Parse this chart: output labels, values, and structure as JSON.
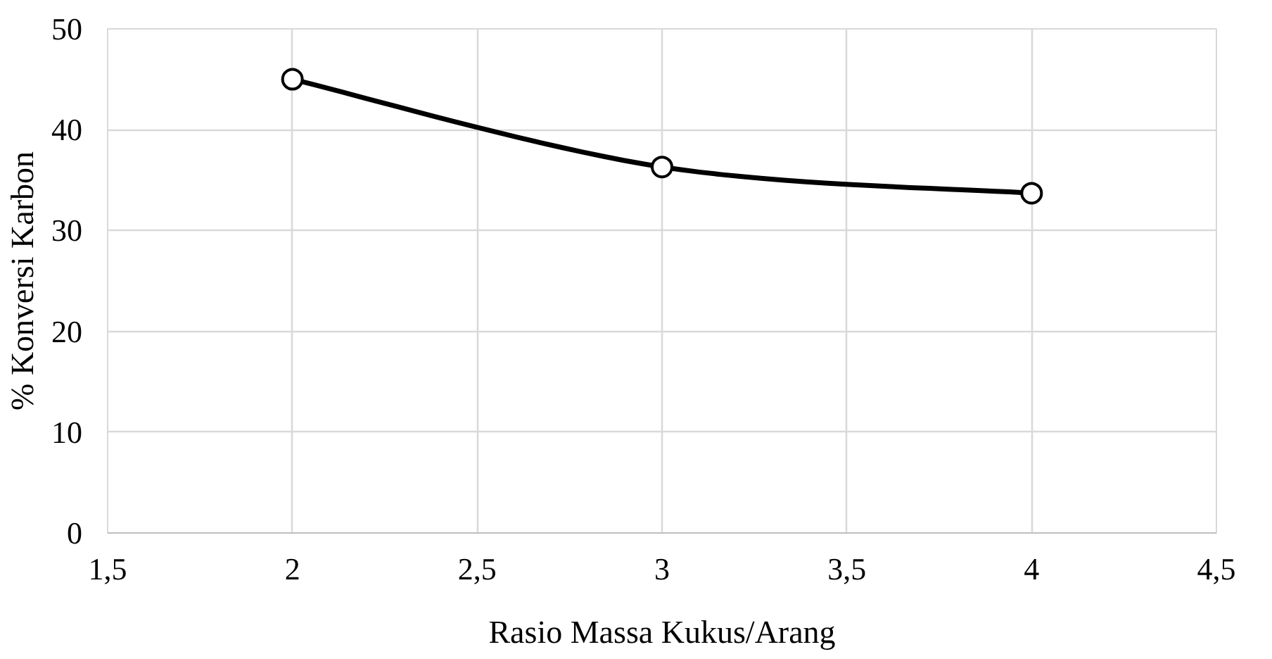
{
  "chart_data": {
    "type": "line",
    "xlabel": "Rasio Massa Kukus/Arang",
    "ylabel": "% Konversi Karbon",
    "x": [
      2,
      3,
      4
    ],
    "series": [
      {
        "color": "#000000",
        "values": [
          45,
          36.3,
          33.7
        ]
      }
    ],
    "xlim": [
      1.5,
      4.5
    ],
    "xticks": [
      {
        "value": 1.5,
        "label": "1,5"
      },
      2,
      {
        "value": 2.5,
        "label": "2,5"
      },
      3,
      {
        "value": 3.5,
        "label": "3,5"
      },
      4,
      {
        "value": 4.5,
        "label": "4,5"
      }
    ],
    "ylim": [
      0,
      50
    ],
    "yticks": [
      0,
      10,
      20,
      30,
      40,
      50
    ],
    "grid": true,
    "marker": "circle",
    "line_style": "solid"
  }
}
